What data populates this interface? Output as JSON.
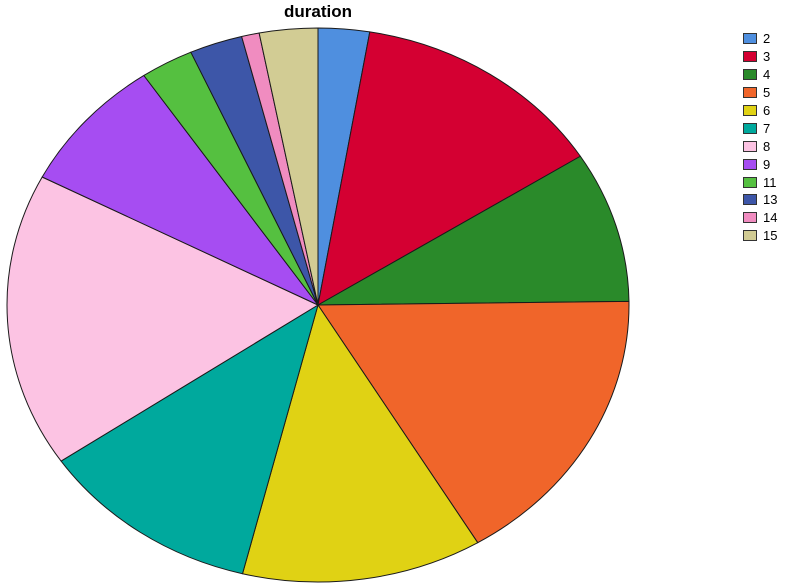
{
  "chart_data": {
    "type": "pie",
    "title": "duration",
    "legend_position": "right",
    "start": "top",
    "direction": "clockwise",
    "slices": [
      {
        "label": "2",
        "value": 2.9,
        "color": "#4f8fdf"
      },
      {
        "label": "3",
        "value": 14.5,
        "color": "#d40032"
      },
      {
        "label": "4",
        "value": 9.6,
        "color": "#2a8a2a"
      },
      {
        "label": "5",
        "value": 18.1,
        "color": "#f0652a"
      },
      {
        "label": "6",
        "value": 13.6,
        "color": "#e0d214"
      },
      {
        "label": "7",
        "value": 12.6,
        "color": "#00a99d"
      },
      {
        "label": "8",
        "value": 18.7,
        "color": "#fcc3e3"
      },
      {
        "label": "9",
        "value": 8.6,
        "color": "#a64df2"
      },
      {
        "label": "11",
        "value": 3.0,
        "color": "#55c040"
      },
      {
        "label": "13",
        "value": 3.0,
        "color": "#3d56a8"
      },
      {
        "label": "14",
        "value": 1.0,
        "color": "#f08cc0"
      },
      {
        "label": "15",
        "value": 3.3,
        "color": "#d2cc94"
      }
    ]
  }
}
